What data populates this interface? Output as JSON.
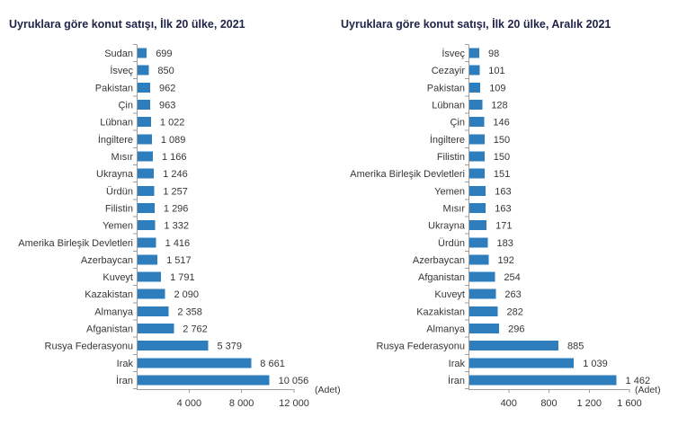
{
  "colors": {
    "bar": "#2E7EBE",
    "title": "#1E2448",
    "text": "#363636",
    "axis": "#9D9D9D"
  },
  "chart_data": [
    {
      "type": "bar",
      "orientation": "horizontal",
      "title": "Uyruklara göre konut satışı, İlk 20 ülke, 2021",
      "xlabel": "(Adet)",
      "xlim": [
        0,
        12000
      ],
      "x_ticks": [
        4000,
        8000,
        12000
      ],
      "grid": false,
      "legend": false,
      "order": "smallest-at-top",
      "categories": [
        "Sudan",
        "İsveç",
        "Pakistan",
        "Çin",
        "Lübnan",
        "İngiltere",
        "Mısır",
        "Ukrayna",
        "Ürdün",
        "Filistin",
        "Yemen",
        "Amerika Birleşik Devletleri",
        "Azerbaycan",
        "Kuveyt",
        "Kazakistan",
        "Almanya",
        "Afganistan",
        "Rusya Federasyonu",
        "Irak",
        "İran"
      ],
      "values": [
        699,
        850,
        962,
        963,
        1022,
        1089,
        1166,
        1246,
        1257,
        1296,
        1332,
        1416,
        1517,
        1791,
        2090,
        2358,
        2762,
        5379,
        8661,
        10056
      ]
    },
    {
      "type": "bar",
      "orientation": "horizontal",
      "title": "Uyruklara göre konut satışı, İlk 20 ülke, Aralık 2021",
      "xlabel": "(Adet)",
      "xlim": [
        0,
        1600
      ],
      "x_ticks": [
        400,
        800,
        1200,
        1600
      ],
      "grid": false,
      "legend": false,
      "order": "smallest-at-top",
      "categories": [
        "İsveç",
        "Cezayir",
        "Pakistan",
        "Lübnan",
        "Çin",
        "İngiltere",
        "Filistin",
        "Amerika Birleşik Devletleri",
        "Yemen",
        "Mısır",
        "Ukrayna",
        "Ürdün",
        "Azerbaycan",
        "Afganistan",
        "Kuveyt",
        "Kazakistan",
        "Almanya",
        "Rusya Federasyonu",
        "Irak",
        "İran"
      ],
      "values": [
        98,
        101,
        109,
        128,
        146,
        150,
        150,
        151,
        163,
        163,
        171,
        183,
        192,
        254,
        263,
        282,
        296,
        885,
        1039,
        1462
      ]
    }
  ]
}
